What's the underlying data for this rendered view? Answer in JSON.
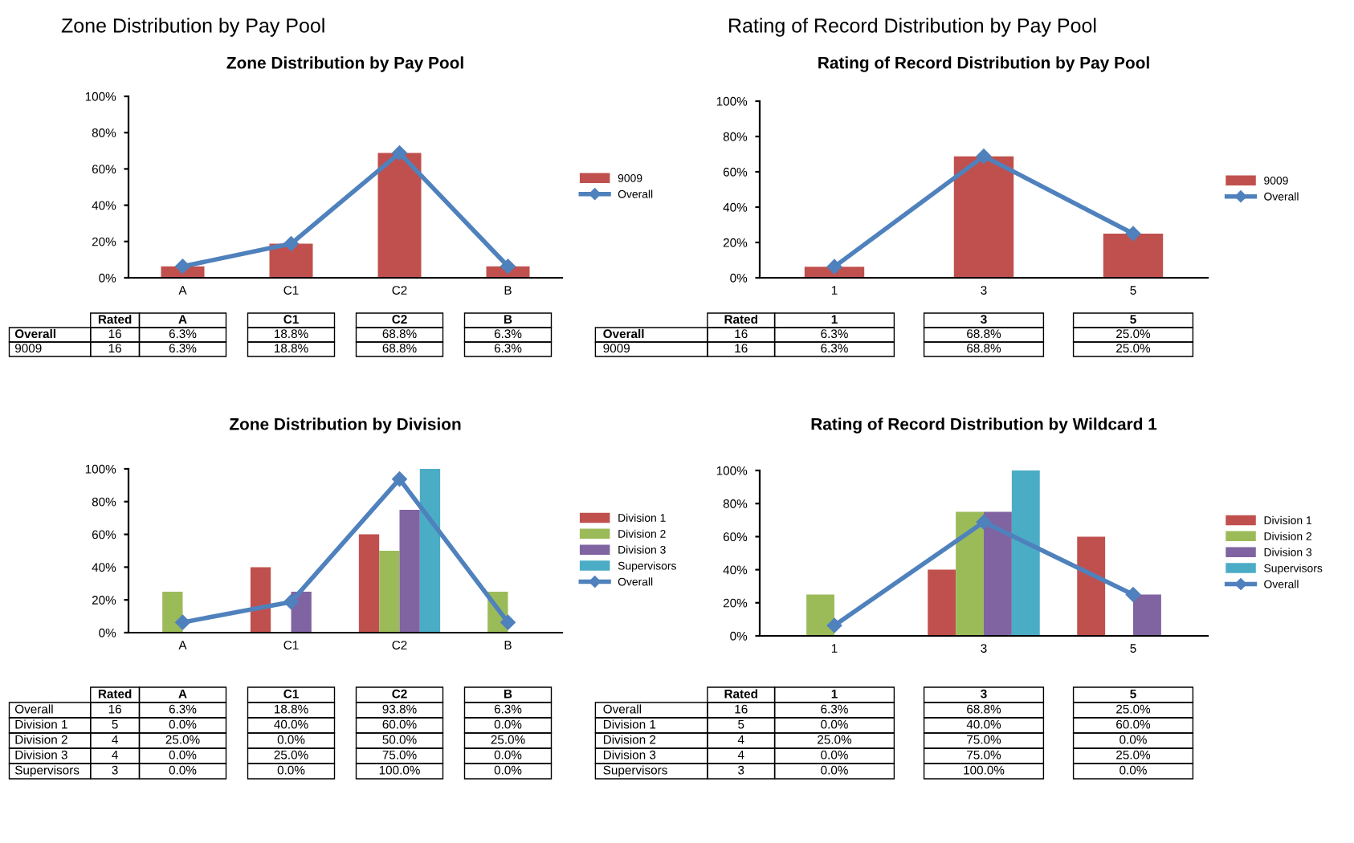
{
  "chart_data": [
    {
      "type": "bar",
      "title": "Zone Distribution by Pay Pool",
      "annotations": [
        "Zone Distribution by Pay Pool",
        "Rated",
        "16",
        "16"
      ],
      "categories": [
        "A",
        "C1",
        "C2",
        "B"
      ],
      "ylim": [
        0,
        100
      ],
      "yticks": [
        {
          "value": 0,
          "label": "0%"
        },
        {
          "value": 20,
          "label": "20%"
        },
        {
          "value": 40,
          "label": "40%"
        },
        {
          "value": 60,
          "label": "60%"
        },
        {
          "value": 80,
          "label": "80%"
        },
        {
          "value": 100,
          "label": "100%"
        }
      ],
      "legend": "right",
      "marker": "diamond",
      "series": [
        {
          "name": "Overall",
          "type": "line",
          "color": "#4f81bd",
          "values": [
            6.3,
            18.8,
            68.8,
            6.3
          ],
          "value_labels": [
            "6.3%",
            "18.8%",
            "68.8%",
            "6.3%"
          ]
        },
        {
          "name": "9009",
          "color": "#c0504d",
          "values": [
            6.3,
            18.8,
            68.8,
            6.3
          ],
          "value_labels": [
            "6.3%",
            "18.8%",
            "68.8%",
            "6.3%"
          ]
        }
      ]
    },
    {
      "type": "bar",
      "title": "Rating of Record Distribution by Pay Pool",
      "annotations": [
        "Rating of Record Distribution by Pay Pool",
        "Rated",
        "16",
        "16"
      ],
      "categories": [
        "1",
        "3",
        "5"
      ],
      "ylim": [
        0,
        100
      ],
      "yticks": [
        {
          "value": 0,
          "label": "0%"
        },
        {
          "value": 20,
          "label": "20%"
        },
        {
          "value": 40,
          "label": "40%"
        },
        {
          "value": 60,
          "label": "60%"
        },
        {
          "value": 80,
          "label": "80%"
        },
        {
          "value": 100,
          "label": "100%"
        }
      ],
      "legend": "right",
      "marker": "diamond",
      "series": [
        {
          "name": "Overall",
          "type": "line",
          "color": "#4f81bd",
          "values": [
            6.3,
            68.8,
            25.0
          ],
          "value_labels": [
            "6.3%",
            "68.8%",
            "25.0%"
          ]
        },
        {
          "name": "9009",
          "color": "#c0504d",
          "values": [
            6.3,
            68.8,
            25.0
          ],
          "value_labels": [
            "6.3%",
            "68.8%",
            "25.0%"
          ]
        }
      ]
    },
    {
      "type": "bar",
      "title": "Zone Distribution by Division",
      "annotations": [
        "Rated",
        "16",
        "5",
        "4",
        "4",
        "3"
      ],
      "categories": [
        "A",
        "C1",
        "C2",
        "B"
      ],
      "ylim": [
        0,
        100
      ],
      "yticks": [
        {
          "value": 0,
          "label": "0%"
        },
        {
          "value": 20,
          "label": "20%"
        },
        {
          "value": 40,
          "label": "40%"
        },
        {
          "value": 60,
          "label": "60%"
        },
        {
          "value": 80,
          "label": "80%"
        },
        {
          "value": 100,
          "label": "100%"
        }
      ],
      "legend": "right",
      "marker": "diamond",
      "series": [
        {
          "name": "Overall",
          "type": "line",
          "color": "#4f81bd",
          "values": [
            6.3,
            18.8,
            93.8,
            6.3
          ],
          "value_labels": [
            "6.3%",
            "18.8%",
            "93.8%",
            "6.3%"
          ]
        },
        {
          "name": "Division 1",
          "color": "#c0504d",
          "values": [
            0.0,
            40.0,
            60.0,
            0.0
          ],
          "value_labels": [
            "0.0%",
            "40.0%",
            "60.0%",
            "0.0%"
          ]
        },
        {
          "name": "Division 2",
          "color": "#9bbb59",
          "values": [
            25.0,
            0.0,
            50.0,
            25.0
          ],
          "value_labels": [
            "25.0%",
            "0.0%",
            "50.0%",
            "25.0%"
          ]
        },
        {
          "name": "Division 3",
          "color": "#8064a2",
          "values": [
            0.0,
            25.0,
            75.0,
            0.0
          ],
          "value_labels": [
            "0.0%",
            "25.0%",
            "75.0%",
            "0.0%"
          ]
        },
        {
          "name": "Supervisors",
          "color": "#4bacc6",
          "values": [
            0.0,
            0.0,
            100.0,
            0.0
          ],
          "value_labels": [
            "0.0%",
            "0.0%",
            "100.0%",
            "0.0%"
          ]
        }
      ]
    },
    {
      "type": "bar",
      "title": "Rating of Record Distribution by Wildcard 1",
      "annotations": [
        "Rated",
        "16",
        "5",
        "4",
        "4",
        "3"
      ],
      "categories": [
        "1",
        "3",
        "5"
      ],
      "ylim": [
        0,
        100
      ],
      "yticks": [
        {
          "value": 0,
          "label": "0%"
        },
        {
          "value": 20,
          "label": "20%"
        },
        {
          "value": 40,
          "label": "40%"
        },
        {
          "value": 60,
          "label": "60%"
        },
        {
          "value": 80,
          "label": "80%"
        },
        {
          "value": 100,
          "label": "100%"
        }
      ],
      "legend": "right",
      "marker": "diamond",
      "series": [
        {
          "name": "Overall",
          "type": "line",
          "color": "#4f81bd",
          "values": [
            6.3,
            68.8,
            25.0
          ],
          "value_labels": [
            "6.3%",
            "68.8%",
            "25.0%"
          ]
        },
        {
          "name": "Division 1",
          "color": "#c0504d",
          "values": [
            0.0,
            40.0,
            60.0
          ],
          "value_labels": [
            "0.0%",
            "40.0%",
            "60.0%"
          ]
        },
        {
          "name": "Division 2",
          "color": "#9bbb59",
          "values": [
            25.0,
            75.0,
            0.0
          ],
          "value_labels": [
            "25.0%",
            "75.0%",
            "0.0%"
          ]
        },
        {
          "name": "Division 3",
          "color": "#8064a2",
          "values": [
            0.0,
            75.0,
            25.0
          ],
          "value_labels": [
            "0.0%",
            "75.0%",
            "25.0%"
          ]
        },
        {
          "name": "Supervisors",
          "color": "#4bacc6",
          "values": [
            0.0,
            100.0,
            0.0
          ],
          "value_labels": [
            "0.0%",
            "100.0%",
            "0.0%"
          ]
        }
      ]
    }
  ]
}
